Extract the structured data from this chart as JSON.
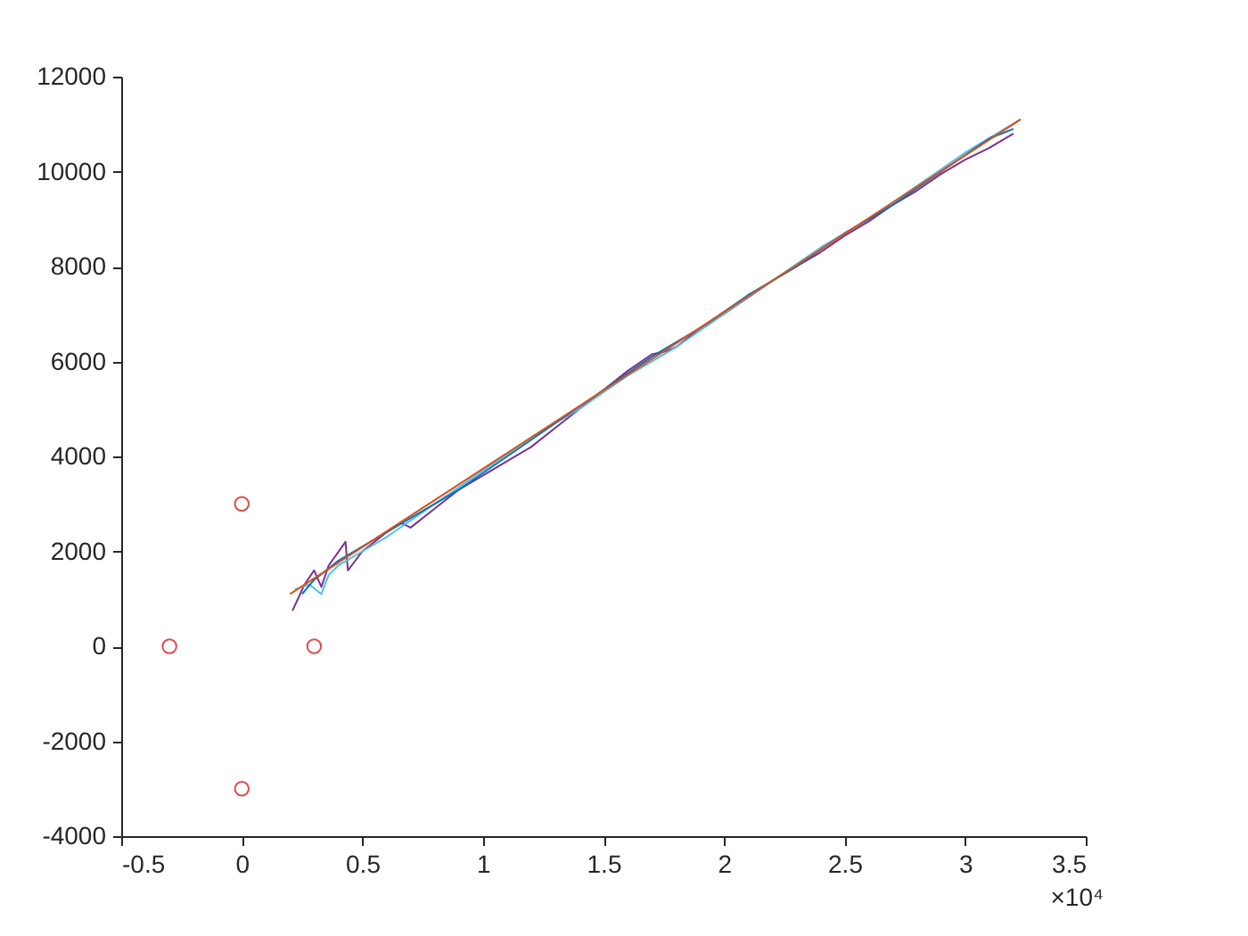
{
  "chart_data": {
    "type": "line",
    "xlim": [
      -0.5,
      3.5
    ],
    "xticks": [
      -0.5,
      0,
      0.5,
      1,
      1.5,
      2,
      2.5,
      3,
      3.5
    ],
    "ylim": [
      -4000,
      12000
    ],
    "yticks": [
      -4000,
      -2000,
      0,
      2000,
      4000,
      6000,
      8000,
      10000,
      12000
    ],
    "annotations": [
      "×10⁴"
    ],
    "grid": false,
    "legend": false,
    "marker": "none",
    "line_style": "solid",
    "series": [
      {
        "color": "#7e2f8e",
        "x": [
          0.21,
          0.26,
          0.3,
          0.33,
          0.36,
          0.43,
          0.44,
          0.5,
          0.6,
          0.66,
          0.7,
          0.8,
          0.9,
          1.0,
          1.1,
          1.2,
          1.3,
          1.4,
          1.5,
          1.6,
          1.7,
          1.75,
          1.8,
          1.9,
          2.0,
          2.1,
          2.2,
          2.3,
          2.4,
          2.5,
          2.6,
          2.7,
          2.8,
          2.9,
          3.0,
          3.1,
          3.2
        ],
        "values": [
          750,
          1300,
          1600,
          1250,
          1700,
          2200,
          1600,
          2000,
          2400,
          2600,
          2500,
          2900,
          3300,
          3600,
          3900,
          4200,
          4600,
          5000,
          5400,
          5800,
          6150,
          6200,
          6300,
          6700,
          7000,
          7350,
          7700,
          8000,
          8300,
          8650,
          8950,
          9300,
          9600,
          9950,
          10250,
          10500,
          10800
        ]
      },
      {
        "color": "#4dbeee",
        "x": [
          0.22,
          0.28,
          0.33,
          0.36,
          0.4,
          0.5,
          0.6,
          0.8,
          1.0,
          1.2,
          1.4,
          1.6,
          1.8,
          2.0,
          2.2,
          2.4,
          2.6,
          2.8,
          3.0,
          3.23
        ],
        "values": [
          1200,
          1300,
          1100,
          1500,
          1700,
          2000,
          2300,
          3000,
          3700,
          4400,
          5000,
          5700,
          6300,
          7000,
          7700,
          8400,
          9000,
          9700,
          10400,
          11100
        ]
      },
      {
        "color": "#0072bd",
        "x": [
          0.25,
          0.3,
          0.4,
          0.5,
          0.7,
          0.9,
          1.1,
          1.3,
          1.5,
          1.7,
          1.9,
          2.1,
          2.3,
          2.5,
          2.7,
          2.9,
          3.1,
          3.2
        ],
        "values": [
          1100,
          1400,
          1800,
          2100,
          2700,
          3300,
          4000,
          4700,
          5400,
          6100,
          6700,
          7400,
          8000,
          8700,
          9300,
          10000,
          10700,
          10900
        ]
      },
      {
        "color": "#d95319",
        "x": [
          0.2,
          3.23
        ],
        "values": [
          1100,
          11100
        ]
      },
      {
        "type": "scatter",
        "marker": "circle",
        "color": "#d00000",
        "x": [
          -0.3,
          0,
          0.3,
          0
        ],
        "values": [
          0,
          3000,
          0,
          -3000
        ]
      }
    ]
  }
}
